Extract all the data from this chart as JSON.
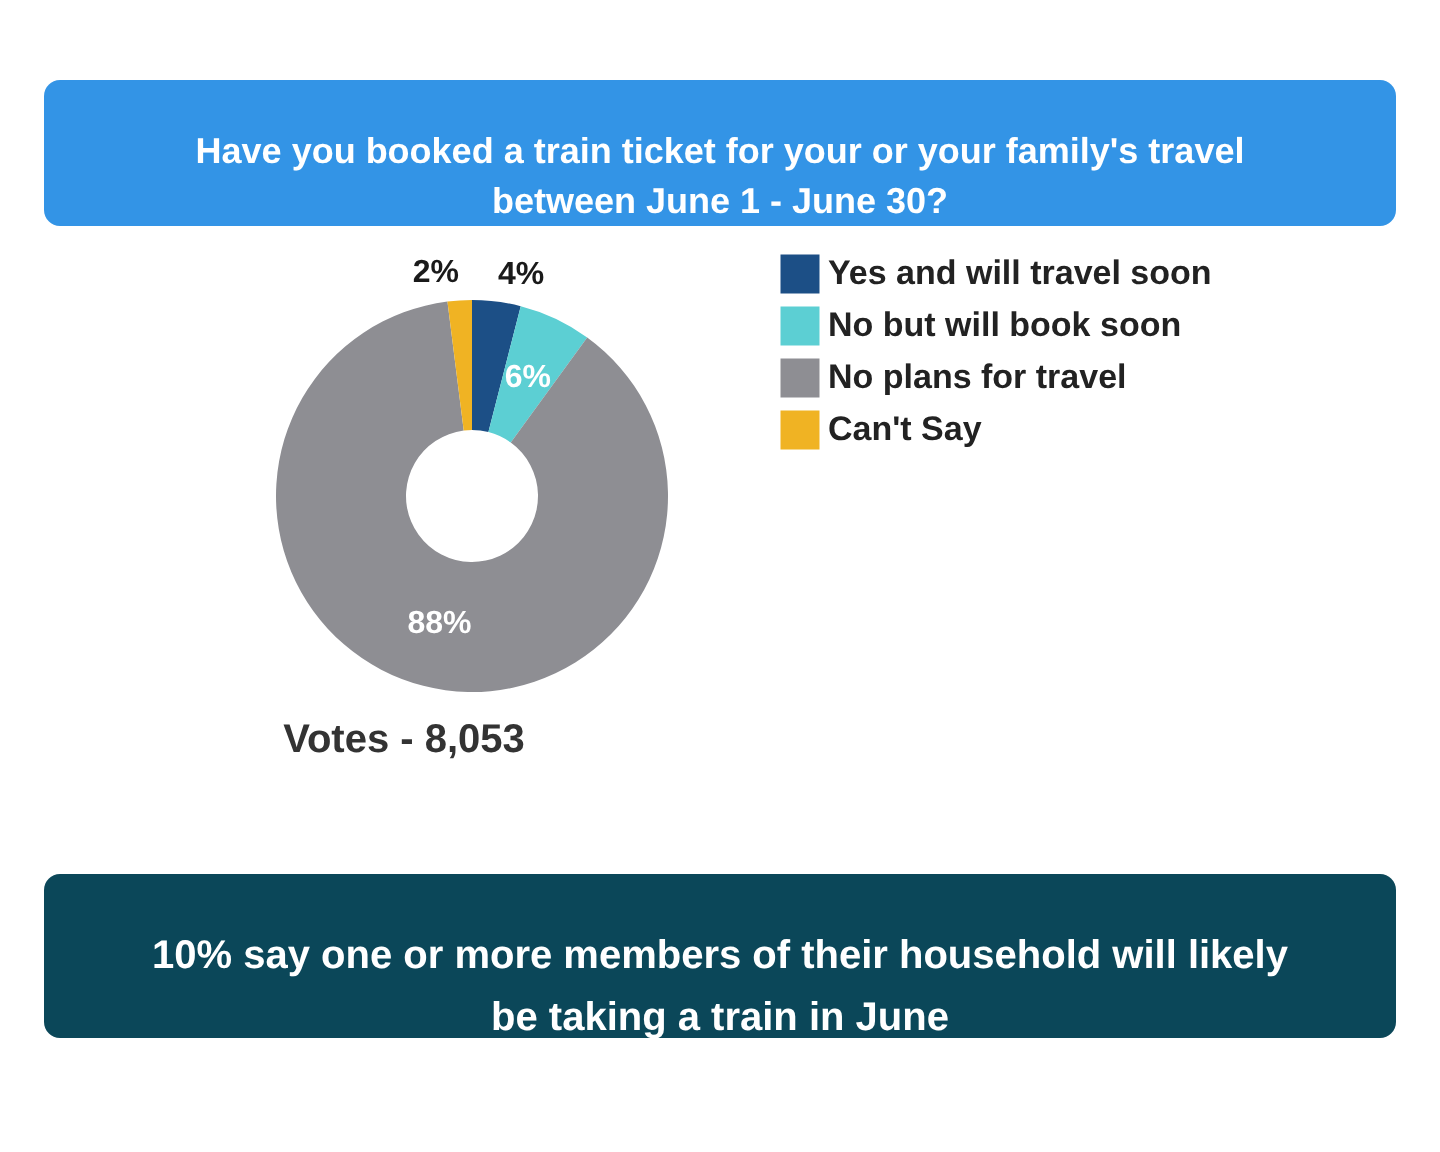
{
  "chart_data": {
    "type": "donut",
    "title": "Have you booked a train ticket for your or your family's travel between June 1 - June 30?",
    "categories": [
      "Yes and will travel soon",
      "No but will book soon",
      "No plans for travel",
      "Can't Say"
    ],
    "values": [
      4,
      6,
      88,
      2
    ],
    "colors": [
      "#1c4f86",
      "#5ccfd3",
      "#8e8e93",
      "#f0b323"
    ],
    "value_labels": [
      "4%",
      "6%",
      "88%",
      "2%"
    ],
    "legend": "right",
    "annotations": [
      "Votes - 8,053",
      "10% say one or more members of their household will likely be taking a train in June"
    ]
  }
}
